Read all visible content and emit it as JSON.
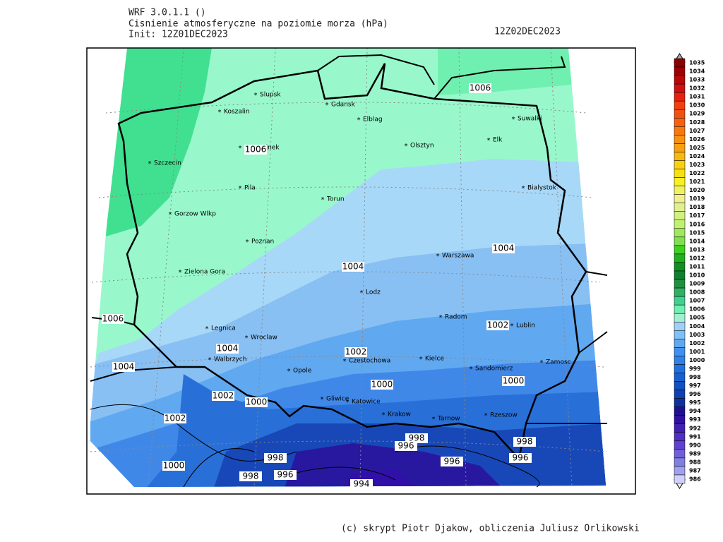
{
  "header": {
    "model": "WRF 3.0.1.1 ()",
    "variable": "Cisnienie atmosferyczne na poziomie morza (hPa)",
    "init": "Init: 12Z01DEC2023",
    "valid": "12Z02DEC2023"
  },
  "cities": [
    "Slupsk",
    "Koszalin",
    "Gdansk",
    "Elblag",
    "Suwalki",
    "Olsztyn",
    "Elk",
    "Szczecinek",
    "Szczecin",
    "Bialystok",
    "Pila",
    "Torun",
    "Gorzow Wlkp",
    "Poznan",
    "Warszawa",
    "Zielona Gora",
    "Lodz",
    "Radom",
    "Lublin",
    "Legnica",
    "Wroclaw",
    "Walbrzych",
    "Opole",
    "Czestochowa",
    "Kielce",
    "Sandomierz",
    "Zamosc",
    "Gliwice",
    "Katowice",
    "Krakow",
    "Tarnow",
    "Rzeszow"
  ],
  "contour_labels": [
    1006,
    1006,
    1006,
    1004,
    1004,
    1004,
    1004,
    1002,
    1002,
    1002,
    1002,
    1000,
    1000,
    1000,
    1000,
    998,
    998,
    998,
    998,
    996,
    996,
    996,
    996,
    994
  ],
  "colorbar": {
    "levels": [
      1035,
      1034,
      1033,
      1032,
      1031,
      1030,
      1029,
      1028,
      1027,
      1026,
      1025,
      1024,
      1023,
      1022,
      1021,
      1020,
      1019,
      1018,
      1017,
      1016,
      1015,
      1014,
      1013,
      1012,
      1011,
      1010,
      1009,
      1008,
      1007,
      1006,
      1005,
      1004,
      1003,
      1002,
      1001,
      1000,
      999,
      998,
      997,
      996,
      995,
      994,
      993,
      992,
      991,
      990,
      989,
      988,
      987,
      986
    ],
    "colors": [
      "#8b0000",
      "#a00000",
      "#b80808",
      "#d01010",
      "#e82010",
      "#f04010",
      "#f05010",
      "#f86010",
      "#f87810",
      "#f89010",
      "#f8a010",
      "#f8b810",
      "#f8d010",
      "#f8e010",
      "#f8f020",
      "#f0f060",
      "#f0f090",
      "#e0f090",
      "#d0f080",
      "#c0f070",
      "#a0e860",
      "#80e050",
      "#40d020",
      "#20b020",
      "#109020",
      "#108030",
      "#209040",
      "#30b060",
      "#40d090",
      "#70f0b0",
      "#a0f0d0",
      "#a0d0f8",
      "#80c0f8",
      "#60a8f0",
      "#4090f0",
      "#3080e8",
      "#2070e0",
      "#1860d0",
      "#1050c0",
      "#1040b0",
      "#1030a0",
      "#201090",
      "#3010a0",
      "#4020b0",
      "#5030c0",
      "#6040d0",
      "#7060d8",
      "#8080e0",
      "#a0a0f0",
      "#d0d0f8"
    ]
  },
  "footer": "(c) skrypt Piotr Djakow, obliczenia Juliusz Orlikowski"
}
